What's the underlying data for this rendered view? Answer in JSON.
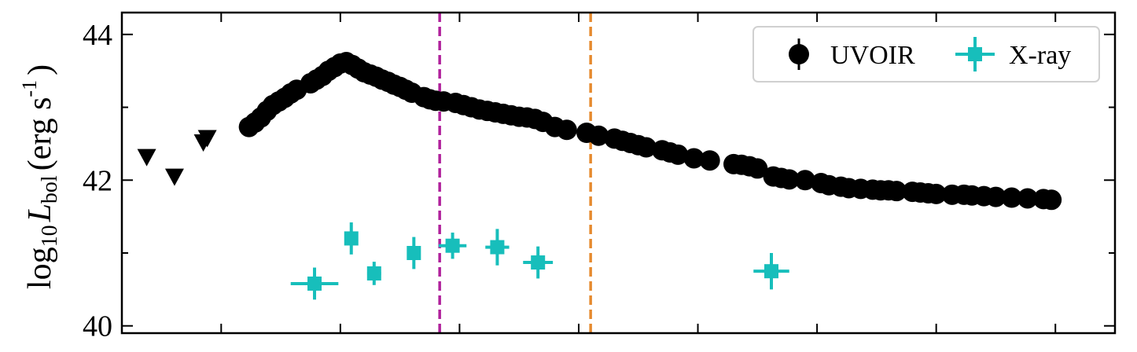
{
  "chart_data": {
    "type": "scatter",
    "ylabel": {
      "prefix": "log",
      "prefix_sub": "10",
      "symbol": "L",
      "symbol_sub": "bol",
      "units_open": "(erg s",
      "units_sup": "-1",
      "units_close": ")"
    },
    "ylim": [
      39.9,
      44.3
    ],
    "xlim": [
      0,
      100
    ],
    "yticks": [
      40,
      41,
      42,
      43,
      44
    ],
    "yticklabels": [
      "40",
      "42",
      "44"
    ],
    "yticklabel_values": [
      40,
      42,
      44
    ],
    "xticks": [
      10,
      22,
      34,
      46,
      58,
      70,
      82,
      94
    ],
    "grid": false,
    "legend": {
      "placement": "top-right",
      "entries": [
        {
          "label": "UVOIR",
          "marker": "circle",
          "color": "#000000"
        },
        {
          "label": "X-ray",
          "marker": "square",
          "color": "#17bebb"
        }
      ]
    },
    "vlines": [
      {
        "x": 32.0,
        "color": "#b0219c"
      },
      {
        "x": 47.2,
        "color": "#e68a2e"
      }
    ],
    "upper_limits": [
      {
        "x": 2.5,
        "y": 42.32
      },
      {
        "x": 5.3,
        "y": 42.05
      },
      {
        "x": 8.2,
        "y": 42.52
      },
      {
        "x": 8.6,
        "y": 42.58
      }
    ],
    "series": [
      {
        "name": "UVOIR",
        "color": "#000000",
        "marker": "circle",
        "x": [
          12.8,
          13.4,
          14.0,
          14.6,
          15.2,
          15.8,
          16.4,
          17.0,
          17.6,
          19.0,
          19.6,
          20.2,
          20.8,
          21.4,
          22.0,
          22.6,
          23.2,
          23.8,
          24.4,
          25.0,
          25.6,
          26.2,
          26.8,
          27.4,
          28.0,
          28.6,
          29.2,
          30.4,
          31.0,
          31.6,
          32.4,
          33.6,
          34.4,
          35.2,
          36.0,
          36.8,
          37.6,
          38.4,
          39.2,
          40.0,
          40.8,
          41.6,
          42.4,
          43.6,
          44.8,
          46.8,
          48.0,
          49.6,
          50.4,
          51.2,
          52.0,
          52.8,
          54.4,
          55.2,
          56.0,
          57.6,
          59.2,
          61.6,
          62.4,
          63.2,
          64.0,
          65.6,
          66.4,
          67.2,
          68.8,
          70.4,
          71.2,
          72.4,
          73.2,
          74.4,
          75.6,
          76.4,
          77.2,
          78.0,
          79.6,
          80.4,
          81.2,
          82.0,
          83.6,
          84.8,
          85.6,
          86.8,
          88.0,
          89.6,
          91.2,
          92.8,
          93.6
        ],
        "y": [
          42.73,
          42.79,
          42.86,
          42.95,
          43.03,
          43.08,
          43.13,
          43.19,
          43.24,
          43.33,
          43.38,
          43.43,
          43.5,
          43.55,
          43.6,
          43.62,
          43.58,
          43.53,
          43.48,
          43.45,
          43.42,
          43.38,
          43.35,
          43.31,
          43.28,
          43.24,
          43.2,
          43.14,
          43.11,
          43.09,
          43.08,
          43.06,
          43.03,
          43.0,
          42.97,
          42.95,
          42.93,
          42.91,
          42.89,
          42.87,
          42.86,
          42.84,
          42.8,
          42.73,
          42.69,
          42.65,
          42.61,
          42.57,
          42.54,
          42.51,
          42.48,
          42.45,
          42.41,
          42.38,
          42.35,
          42.3,
          42.27,
          42.22,
          42.21,
          42.19,
          42.16,
          42.05,
          42.03,
          42.01,
          42.0,
          41.96,
          41.93,
          41.91,
          41.89,
          41.88,
          41.87,
          41.86,
          41.86,
          41.85,
          41.84,
          41.83,
          41.82,
          41.81,
          41.8,
          41.8,
          41.79,
          41.78,
          41.77,
          41.76,
          41.75,
          41.74,
          41.73
        ],
        "yerr": 0.04
      },
      {
        "name": "X-ray",
        "color": "#17bebb",
        "marker": "square",
        "x": [
          19.4,
          23.1,
          25.4,
          29.4,
          33.3,
          37.8,
          41.9,
          65.4
        ],
        "xerr": [
          2.4,
          0.4,
          0.7,
          0.6,
          1.4,
          1.2,
          1.5,
          1.8
        ],
        "y": [
          40.58,
          41.2,
          40.72,
          41.0,
          41.1,
          41.08,
          40.87,
          40.75
        ],
        "yerr": [
          0.22,
          0.22,
          0.16,
          0.22,
          0.18,
          0.25,
          0.22,
          0.25
        ]
      }
    ]
  }
}
